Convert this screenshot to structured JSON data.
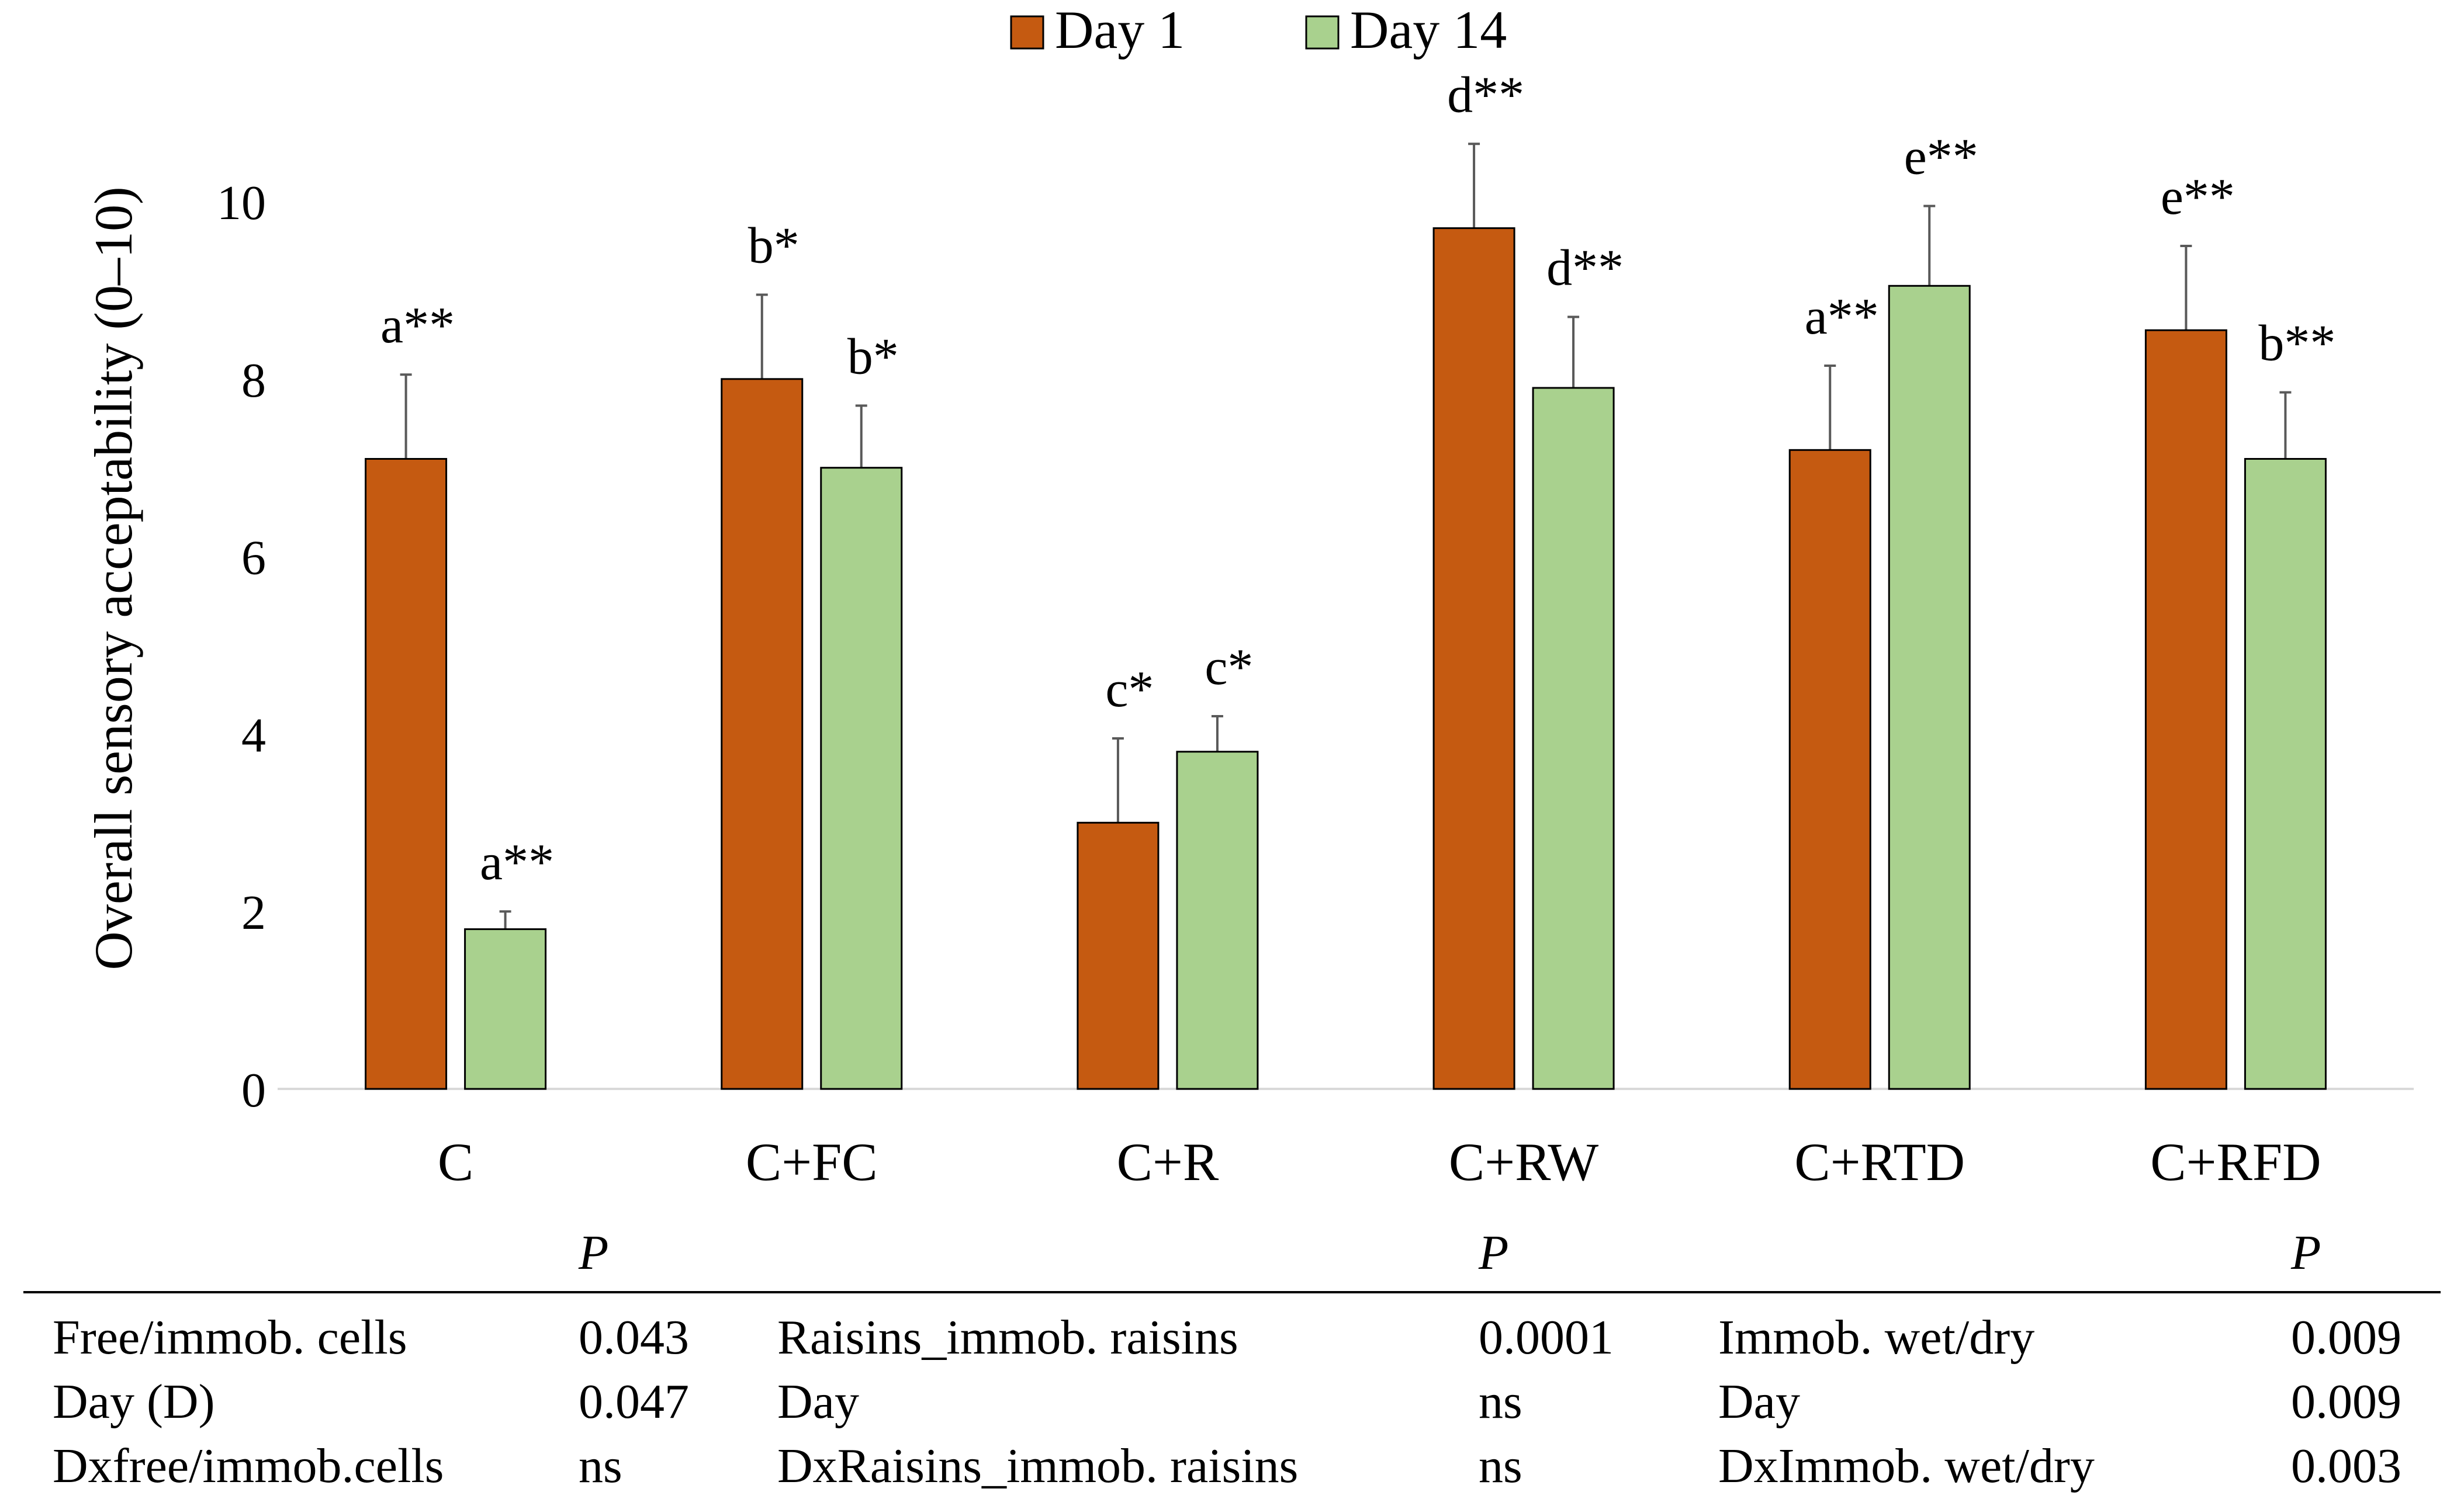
{
  "colors": {
    "day1": "#C55A11",
    "day14": "#A9D18E"
  },
  "chart_data": {
    "type": "bar",
    "title": "",
    "xlabel": "",
    "ylabel": "Overall sensory acceptability (0–10)",
    "ylim": [
      0,
      10
    ],
    "yticks": [
      "0",
      "2",
      "4",
      "6",
      "8",
      "10"
    ],
    "legend_position": "top-center",
    "grid": false,
    "categories": [
      "C",
      "C+FC",
      "C+R",
      "C+RW",
      "C+RTD",
      "C+RFD"
    ],
    "series": [
      {
        "name": "Day  1",
        "color_key": "day1",
        "values": [
          7.1,
          8.0,
          3.0,
          9.7,
          7.2,
          8.55
        ],
        "errors": [
          0.95,
          0.95,
          0.95,
          0.95,
          0.95,
          0.95
        ],
        "labels": [
          "a**",
          "b*",
          "c*",
          "d**",
          "a**",
          "e**"
        ]
      },
      {
        "name": "Day 14",
        "color_key": "day14",
        "values": [
          1.8,
          7.0,
          3.8,
          7.9,
          9.05,
          7.1
        ],
        "errors": [
          0.2,
          0.7,
          0.4,
          0.8,
          0.9,
          0.75
        ],
        "labels": [
          "a**",
          "b*",
          "c*",
          "d**",
          "e**",
          "b**"
        ]
      }
    ]
  },
  "stats_table": {
    "p_header": "P",
    "rows": [
      [
        "Free/immob. cells",
        "0.043",
        "Raisins_immob. raisins",
        "0.0001",
        "Immob. wet/dry",
        "0.009"
      ],
      [
        "Day (D)",
        "0.047",
        "Day",
        "ns",
        "Day",
        "0.009"
      ],
      [
        "Dxfree/immob.cells",
        "ns",
        "DxRaisins_immob. raisins",
        "ns",
        "DxImmob. wet/dry",
        "0.003"
      ]
    ]
  }
}
